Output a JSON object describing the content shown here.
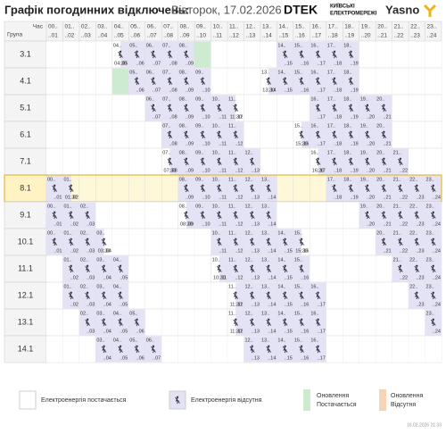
{
  "header": {
    "title": "Графік погодинних відключень:",
    "date": "Вівторок, 17.02.2026",
    "brand": "DTEK",
    "brand_sub": [
      "КИЇВСЬКІ",
      "ЕЛЕКТРОМЕРЕЖІ"
    ],
    "brand2": "Yasno"
  },
  "table": {
    "corner_top": "Час",
    "corner_bottom": "Група",
    "hours": [
      {
        "from": "00..",
        "to": "..01"
      },
      {
        "from": "01..",
        "to": "..02"
      },
      {
        "from": "02..",
        "to": "..03"
      },
      {
        "from": "03..",
        "to": "..04"
      },
      {
        "from": "04..",
        "to": "..05"
      },
      {
        "from": "05..",
        "to": "..06"
      },
      {
        "from": "06..",
        "to": "..07"
      },
      {
        "from": "07..",
        "to": "..08"
      },
      {
        "from": "08..",
        "to": "..09"
      },
      {
        "from": "09..",
        "to": "..10"
      },
      {
        "from": "10..",
        "to": "..11"
      },
      {
        "from": "11..",
        "to": "..12"
      },
      {
        "from": "12..",
        "to": "..13"
      },
      {
        "from": "13..",
        "to": "..14"
      },
      {
        "from": "14..",
        "to": "..15"
      },
      {
        "from": "15..",
        "to": "..16"
      },
      {
        "from": "16..",
        "to": "..17"
      },
      {
        "from": "17..",
        "to": "..18"
      },
      {
        "from": "18..",
        "to": "..19"
      },
      {
        "from": "19..",
        "to": "..20"
      },
      {
        "from": "20..",
        "to": "..21"
      },
      {
        "from": "21..",
        "to": "..22"
      },
      {
        "from": "22..",
        "to": "..23"
      },
      {
        "from": "23..",
        "to": "..24"
      }
    ],
    "rows": [
      {
        "group": "3.1",
        "cells": [
          0,
          0,
          0,
          0,
          2,
          1,
          1,
          1,
          1,
          4,
          0,
          0,
          0,
          0,
          1,
          1,
          1,
          1,
          1,
          0,
          0,
          0,
          0,
          0
        ],
        "times": [
          {
            "hour": 4,
            "text": "04:30"
          }
        ]
      },
      {
        "group": "4.1",
        "cells": [
          0,
          0,
          0,
          0,
          4,
          1,
          1,
          1,
          1,
          1,
          0,
          0,
          0,
          2,
          1,
          1,
          1,
          1,
          1,
          0,
          0,
          0,
          0,
          0
        ],
        "times": [
          {
            "hour": 13,
            "text": "13:30"
          }
        ]
      },
      {
        "group": "5.1",
        "cells": [
          0,
          0,
          0,
          0,
          0,
          0,
          1,
          1,
          1,
          1,
          1,
          3,
          0,
          0,
          0,
          0,
          1,
          1,
          1,
          1,
          1,
          0,
          0,
          0
        ],
        "times": [
          {
            "hour": 11,
            "text": "11:30"
          }
        ]
      },
      {
        "group": "6.1",
        "cells": [
          0,
          0,
          0,
          0,
          0,
          0,
          0,
          1,
          1,
          1,
          1,
          1,
          0,
          0,
          0,
          2,
          1,
          1,
          1,
          1,
          1,
          0,
          0,
          0
        ],
        "times": [
          {
            "hour": 15,
            "text": "15:30"
          }
        ]
      },
      {
        "group": "7.1",
        "cells": [
          0,
          0,
          0,
          0,
          0,
          0,
          0,
          2,
          1,
          1,
          1,
          1,
          1,
          0,
          0,
          0,
          2,
          1,
          1,
          1,
          1,
          1,
          0,
          0
        ],
        "times": [
          {
            "hour": 7,
            "text": "07:30"
          },
          {
            "hour": 16,
            "text": "16:30"
          }
        ]
      },
      {
        "group": "8.1",
        "cells": [
          1,
          3,
          0,
          0,
          0,
          0,
          0,
          0,
          1,
          1,
          1,
          1,
          1,
          1,
          0,
          0,
          0,
          1,
          1,
          1,
          1,
          1,
          1,
          1
        ],
        "times": [
          {
            "hour": 1,
            "text": "01:30"
          }
        ],
        "highlight": true
      },
      {
        "group": "9.1",
        "cells": [
          1,
          1,
          1,
          0,
          0,
          0,
          0,
          0,
          2,
          1,
          1,
          1,
          1,
          1,
          0,
          0,
          0,
          0,
          0,
          1,
          1,
          1,
          1,
          1
        ],
        "times": [
          {
            "hour": 8,
            "text": "08:30"
          }
        ]
      },
      {
        "group": "10.1",
        "cells": [
          1,
          1,
          1,
          3,
          0,
          0,
          0,
          0,
          0,
          0,
          1,
          1,
          1,
          1,
          1,
          3,
          0,
          0,
          0,
          0,
          1,
          1,
          1,
          1
        ],
        "times": [
          {
            "hour": 3,
            "text": "03:30"
          },
          {
            "hour": 15,
            "text": "15:30"
          }
        ]
      },
      {
        "group": "11.1",
        "cells": [
          0,
          1,
          1,
          1,
          1,
          0,
          0,
          0,
          0,
          0,
          2,
          1,
          1,
          1,
          1,
          1,
          0,
          0,
          0,
          0,
          0,
          1,
          1,
          1
        ],
        "times": [
          {
            "hour": 10,
            "text": "10:30"
          }
        ]
      },
      {
        "group": "12.1",
        "cells": [
          0,
          1,
          1,
          1,
          1,
          0,
          0,
          0,
          0,
          0,
          0,
          2,
          1,
          1,
          1,
          1,
          1,
          0,
          0,
          0,
          0,
          0,
          1,
          1
        ],
        "times": [
          {
            "hour": 11,
            "text": "11:30"
          }
        ]
      },
      {
        "group": "13.1",
        "cells": [
          0,
          0,
          1,
          1,
          1,
          1,
          0,
          0,
          0,
          0,
          0,
          2,
          1,
          1,
          1,
          1,
          1,
          0,
          0,
          0,
          0,
          0,
          0,
          1
        ],
        "times": [
          {
            "hour": 11,
            "text": "11:30"
          }
        ]
      },
      {
        "group": "14.1",
        "cells": [
          0,
          0,
          0,
          1,
          1,
          1,
          1,
          0,
          0,
          0,
          0,
          0,
          1,
          1,
          1,
          1,
          1,
          0,
          0,
          0,
          0,
          0,
          0,
          0
        ],
        "times": []
      }
    ]
  },
  "legend": {
    "on": "Електроенергія постачається",
    "off": "Електроенергія відсутня",
    "upd_on": [
      "Оновлення",
      "Постачається"
    ],
    "upd_off": [
      "Оновлення",
      "Відсутня"
    ]
  },
  "footer": "16.02.2026 21:33"
}
